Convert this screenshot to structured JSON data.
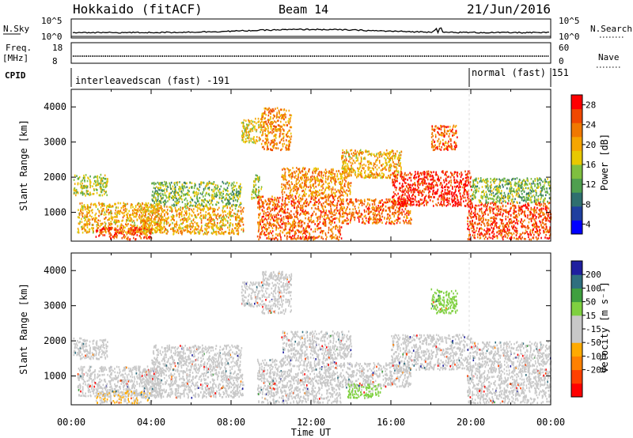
{
  "header": {
    "title": "Hokkaido (fitACF)",
    "beam": "Beam 14",
    "date": "21/Jun/2016"
  },
  "summary": {
    "noise_left_label": "N.Sky",
    "noise_right_label": "N.Search",
    "noise_ticks_left": [
      "10^5",
      "10^0"
    ],
    "noise_ticks_right": [
      "10^5",
      "10^0"
    ],
    "freq_left_label": "Freq.",
    "freq_units": "[MHz]",
    "freq_ticks": [
      "18",
      "8"
    ],
    "nave_label": "Nave",
    "nave_ticks": [
      "60",
      "0"
    ],
    "cpid_label": "CPID",
    "cpid_segments": [
      {
        "label": "interleavedscan (fast) -191",
        "start_h": 0,
        "end_h": 20
      },
      {
        "label": "normal (fast) 151",
        "start_h": 20,
        "end_h": 24
      }
    ]
  },
  "chart_data": [
    {
      "type": "heatmap",
      "name": "power",
      "ylabel": "Slant Range [km]",
      "xlabel": "Time UT",
      "xlim": [
        0,
        24
      ],
      "ylim": [
        180,
        4500
      ],
      "x_ticks": [
        "00:00",
        "04:00",
        "08:00",
        "12:00",
        "16:00",
        "20:00",
        "00:00"
      ],
      "y_ticks": [
        1000,
        2000,
        3000,
        4000
      ],
      "colorbar": {
        "label": "Power [dB]",
        "ticks": [
          "28",
          "24",
          "20",
          "16",
          "12",
          "8",
          "4"
        ],
        "colors": [
          "#0000ff",
          "#1f3f9f",
          "#2f6f6f",
          "#4f9f4f",
          "#7fbf3f",
          "#e8c800",
          "#f5a500",
          "#f07800",
          "#f04800",
          "#ff0000"
        ]
      },
      "regions": [
        {
          "t0": 0.1,
          "t1": 1.8,
          "r0": 1500,
          "r1": 2100,
          "v": 16
        },
        {
          "t0": 0.3,
          "t1": 4.5,
          "r0": 450,
          "r1": 1300,
          "v": 20
        },
        {
          "t0": 1.2,
          "t1": 4.0,
          "r0": 250,
          "r1": 600,
          "v": 26
        },
        {
          "t0": 3.5,
          "t1": 8.6,
          "r0": 400,
          "r1": 1200,
          "v": 20
        },
        {
          "t0": 4.0,
          "t1": 8.5,
          "r0": 1200,
          "r1": 1900,
          "v": 14
        },
        {
          "t0": 8.5,
          "t1": 9.5,
          "r0": 3000,
          "r1": 3700,
          "v": 18
        },
        {
          "t0": 9.0,
          "t1": 9.5,
          "r0": 1400,
          "r1": 2100,
          "v": 16
        },
        {
          "t0": 9.3,
          "t1": 13.5,
          "r0": 250,
          "r1": 1500,
          "v": 24
        },
        {
          "t0": 9.5,
          "t1": 11.0,
          "r0": 2800,
          "r1": 4000,
          "v": 22
        },
        {
          "t0": 10.5,
          "t1": 14.0,
          "r0": 1500,
          "r1": 2300,
          "v": 22
        },
        {
          "t0": 13.5,
          "t1": 17.0,
          "r0": 700,
          "r1": 1400,
          "v": 24
        },
        {
          "t0": 13.5,
          "t1": 16.5,
          "r0": 2000,
          "r1": 2800,
          "v": 20
        },
        {
          "t0": 16.0,
          "t1": 20.0,
          "r0": 1200,
          "r1": 2200,
          "v": 28
        },
        {
          "t0": 18.0,
          "t1": 19.3,
          "r0": 2800,
          "r1": 3500,
          "v": 24
        },
        {
          "t0": 19.8,
          "t1": 24.0,
          "r0": 250,
          "r1": 1300,
          "v": 26
        },
        {
          "t0": 20.0,
          "t1": 24.0,
          "r0": 1300,
          "r1": 2000,
          "v": 14
        }
      ]
    },
    {
      "type": "heatmap",
      "name": "velocity",
      "ylabel": "Slant Range [km]",
      "xlabel": "Time UT",
      "xlim": [
        0,
        24
      ],
      "ylim": [
        180,
        4500
      ],
      "x_ticks": [
        "00:00",
        "04:00",
        "08:00",
        "12:00",
        "16:00",
        "20:00",
        "00:00"
      ],
      "y_ticks": [
        1000,
        2000,
        3000,
        4000
      ],
      "colorbar": {
        "label": "Velocity [m s⁻¹]",
        "ticks": [
          "200",
          "100",
          "50",
          "15",
          "-15",
          "-50",
          "-100",
          "-200"
        ],
        "colors": [
          "#ff0000",
          "#ff4000",
          "#ff8000",
          "#ffaa00",
          "#c8c8c8",
          "#c8c8c8",
          "#7fd040",
          "#3f9f3f",
          "#2f6f7f",
          "#1f1f9f"
        ]
      },
      "regions": [
        {
          "t0": 0.1,
          "t1": 1.8,
          "r0": 1500,
          "r1": 2100,
          "v": 0
        },
        {
          "t0": 0.3,
          "t1": 4.5,
          "r0": 450,
          "r1": 1300,
          "v": 0
        },
        {
          "t0": 1.2,
          "t1": 4.0,
          "r0": 250,
          "r1": 600,
          "v": -40
        },
        {
          "t0": 3.5,
          "t1": 8.6,
          "r0": 400,
          "r1": 1200,
          "v": 0
        },
        {
          "t0": 4.0,
          "t1": 8.5,
          "r0": 1200,
          "r1": 1900,
          "v": 0
        },
        {
          "t0": 8.5,
          "t1": 9.5,
          "r0": 3000,
          "r1": 3700,
          "v": 0
        },
        {
          "t0": 9.3,
          "t1": 13.5,
          "r0": 250,
          "r1": 1500,
          "v": 0
        },
        {
          "t0": 9.5,
          "t1": 11.0,
          "r0": 2800,
          "r1": 4000,
          "v": 0
        },
        {
          "t0": 10.5,
          "t1": 14.0,
          "r0": 1500,
          "r1": 2300,
          "v": 0
        },
        {
          "t0": 13.5,
          "t1": 17.0,
          "r0": 700,
          "r1": 1400,
          "v": 0
        },
        {
          "t0": 13.8,
          "t1": 15.5,
          "r0": 400,
          "r1": 800,
          "v": 60
        },
        {
          "t0": 16.0,
          "t1": 20.0,
          "r0": 1200,
          "r1": 2200,
          "v": 0
        },
        {
          "t0": 18.0,
          "t1": 19.3,
          "r0": 2800,
          "r1": 3500,
          "v": 70
        },
        {
          "t0": 19.8,
          "t1": 24.0,
          "r0": 250,
          "r1": 1300,
          "v": 0
        },
        {
          "t0": 20.0,
          "t1": 24.0,
          "r0": 1300,
          "r1": 2000,
          "v": 0
        }
      ]
    }
  ]
}
